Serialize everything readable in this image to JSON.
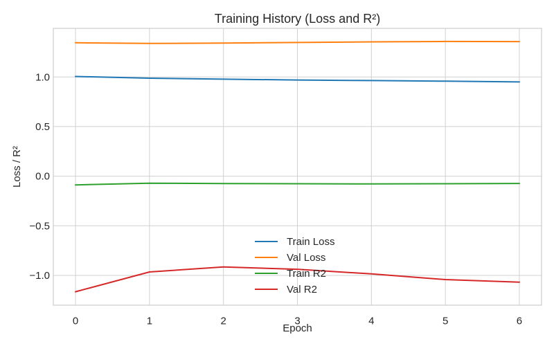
{
  "chart_data": {
    "type": "line",
    "title": "Training History (Loss and R²)",
    "xlabel": "Epoch",
    "ylabel": "Loss / R²",
    "x": [
      0,
      1,
      2,
      3,
      4,
      5,
      6
    ],
    "xlim": [
      -0.3,
      6.3
    ],
    "ylim": [
      -1.3,
      1.49
    ],
    "xticks": [
      0,
      1,
      2,
      3,
      4,
      5,
      6
    ],
    "yticks": [
      -1.0,
      -0.5,
      0.0,
      0.5,
      1.0
    ],
    "ytick_labels": [
      "−1.0",
      "−0.5",
      "0.0",
      "0.5",
      "1.0"
    ],
    "grid": true,
    "legend_position": "lower-center",
    "series": [
      {
        "name": "Train Loss",
        "color": "#1f77b4",
        "values": [
          1.005,
          0.988,
          0.978,
          0.97,
          0.964,
          0.958,
          0.95
        ]
      },
      {
        "name": "Val Loss",
        "color": "#ff7f0e",
        "values": [
          1.345,
          1.338,
          1.342,
          1.348,
          1.354,
          1.358,
          1.357
        ]
      },
      {
        "name": "Train R2",
        "color": "#2ca02c",
        "values": [
          -0.088,
          -0.07,
          -0.074,
          -0.076,
          -0.078,
          -0.076,
          -0.073
        ]
      },
      {
        "name": "Val R2",
        "color": "#d62728",
        "values": [
          -1.165,
          -0.965,
          -0.915,
          -0.938,
          -0.985,
          -1.042,
          -1.068
        ]
      }
    ]
  }
}
